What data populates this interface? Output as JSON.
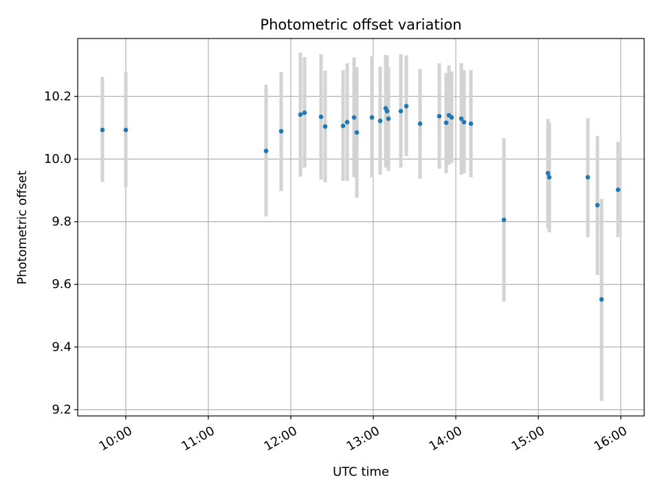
{
  "chart_data": {
    "type": "scatter",
    "title": "Photometric offset variation",
    "xlabel": "UTC time",
    "ylabel": "Photometric offset",
    "xlim": [
      "09:25",
      "16:17"
    ],
    "ylim": [
      9.18,
      10.385
    ],
    "grid": true,
    "x_ticks": [
      "10:00",
      "11:00",
      "12:00",
      "13:00",
      "14:00",
      "15:00",
      "16:00"
    ],
    "y_ticks": [
      9.2,
      9.4,
      9.6,
      9.8,
      10.0,
      10.2
    ],
    "y_tick_labels": [
      "9.2",
      "9.4",
      "9.6",
      "9.8",
      "10.0",
      "10.2"
    ],
    "colors": {
      "marker": "#1f77b4",
      "errorbar": "#d3d3d3",
      "grid": "#b0b0b0"
    },
    "points": [
      {
        "time": "09:43",
        "y": 10.093,
        "lo": 9.928,
        "hi": 10.262
      },
      {
        "time": "10:00",
        "y": 10.093,
        "lo": 9.91,
        "hi": 10.278
      },
      {
        "time": "11:42",
        "y": 10.026,
        "lo": 9.817,
        "hi": 10.237
      },
      {
        "time": "11:53",
        "y": 10.089,
        "lo": 9.898,
        "hi": 10.278
      },
      {
        "time": "12:07",
        "y": 10.142,
        "lo": 9.944,
        "hi": 10.34
      },
      {
        "time": "12:10",
        "y": 10.148,
        "lo": 9.973,
        "hi": 10.326
      },
      {
        "time": "12:22",
        "y": 10.135,
        "lo": 9.935,
        "hi": 10.335
      },
      {
        "time": "12:25",
        "y": 10.104,
        "lo": 9.926,
        "hi": 10.282
      },
      {
        "time": "12:38",
        "y": 10.106,
        "lo": 9.93,
        "hi": 10.284
      },
      {
        "time": "12:41",
        "y": 10.118,
        "lo": 9.93,
        "hi": 10.306
      },
      {
        "time": "12:46",
        "y": 10.133,
        "lo": 9.942,
        "hi": 10.324
      },
      {
        "time": "12:48",
        "y": 10.085,
        "lo": 9.877,
        "hi": 10.293
      },
      {
        "time": "12:59",
        "y": 10.133,
        "lo": 9.942,
        "hi": 10.328
      },
      {
        "time": "13:05",
        "y": 10.122,
        "lo": 9.95,
        "hi": 10.295
      },
      {
        "time": "13:09",
        "y": 10.162,
        "lo": 9.973,
        "hi": 10.333
      },
      {
        "time": "13:10",
        "y": 10.153,
        "lo": 9.982,
        "hi": 10.33
      },
      {
        "time": "13:11",
        "y": 10.129,
        "lo": 9.962,
        "hi": 10.293
      },
      {
        "time": "13:20",
        "y": 10.153,
        "lo": 9.973,
        "hi": 10.335
      },
      {
        "time": "13:24",
        "y": 10.169,
        "lo": 10.009,
        "hi": 10.331
      },
      {
        "time": "13:34",
        "y": 10.113,
        "lo": 9.937,
        "hi": 10.288
      },
      {
        "time": "13:48",
        "y": 10.137,
        "lo": 9.969,
        "hi": 10.306
      },
      {
        "time": "13:53",
        "y": 10.116,
        "lo": 9.955,
        "hi": 10.275
      },
      {
        "time": "13:55",
        "y": 10.14,
        "lo": 9.982,
        "hi": 10.299
      },
      {
        "time": "13:57",
        "y": 10.133,
        "lo": 9.988,
        "hi": 10.28
      },
      {
        "time": "14:04",
        "y": 10.129,
        "lo": 9.95,
        "hi": 10.306
      },
      {
        "time": "14:06",
        "y": 10.118,
        "lo": 9.955,
        "hi": 10.284
      },
      {
        "time": "14:11",
        "y": 10.113,
        "lo": 9.942,
        "hi": 10.284
      },
      {
        "time": "14:35",
        "y": 9.806,
        "lo": 9.545,
        "hi": 10.067
      },
      {
        "time": "15:07",
        "y": 9.955,
        "lo": 9.78,
        "hi": 10.128
      },
      {
        "time": "15:08",
        "y": 9.942,
        "lo": 9.766,
        "hi": 10.117
      },
      {
        "time": "15:36",
        "y": 9.942,
        "lo": 9.751,
        "hi": 10.13
      },
      {
        "time": "15:43",
        "y": 9.853,
        "lo": 9.63,
        "hi": 10.074
      },
      {
        "time": "15:46",
        "y": 9.552,
        "lo": 9.228,
        "hi": 9.873
      },
      {
        "time": "15:58",
        "y": 9.902,
        "lo": 9.751,
        "hi": 10.055
      }
    ]
  }
}
